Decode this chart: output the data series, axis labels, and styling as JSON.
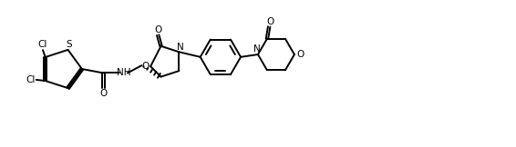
{
  "background": "#ffffff",
  "line_color": "#000000",
  "line_width": 1.4,
  "figsize": [
    5.66,
    1.62
  ],
  "dpi": 100,
  "xlim": [
    0,
    10.2
  ],
  "ylim": [
    0,
    2.86
  ]
}
